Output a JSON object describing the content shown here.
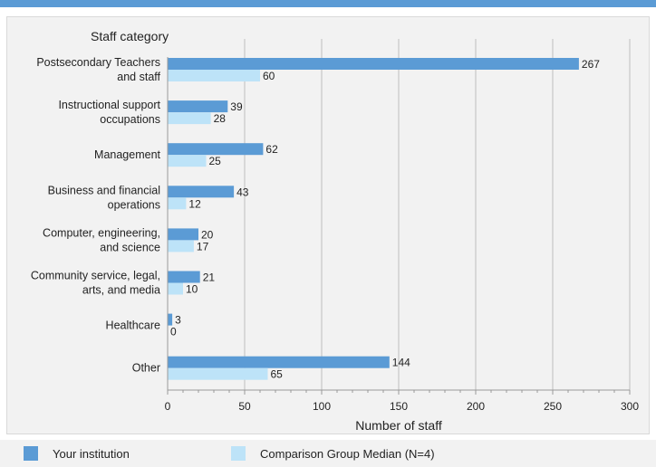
{
  "colors": {
    "series1": "#5b9bd5",
    "series2": "#bde3f8",
    "bar_band": "#5b9bd5"
  },
  "chart_data": {
    "type": "bar",
    "orientation": "horizontal",
    "title": "Staff category",
    "xlabel": "Number of staff",
    "categories": [
      [
        "Postsecondary Teachers",
        "and staff"
      ],
      [
        "Instructional support",
        "occupations"
      ],
      [
        "Management"
      ],
      [
        "Business and financial",
        "operations"
      ],
      [
        "Computer, engineering,",
        "and science"
      ],
      [
        "Community service, legal,",
        "arts, and media"
      ],
      [
        "Healthcare"
      ],
      [
        "Other"
      ]
    ],
    "series": [
      {
        "name": "Your institution",
        "values": [
          267,
          39,
          62,
          43,
          20,
          21,
          3,
          144
        ]
      },
      {
        "name": "Comparison Group Median (N=4)",
        "values": [
          60,
          28,
          25,
          12,
          17,
          10,
          0,
          65
        ]
      }
    ],
    "xlim": [
      0,
      300
    ],
    "xticks": [
      0,
      50,
      100,
      150,
      200,
      250,
      300
    ],
    "grid": true,
    "legend_position": "bottom"
  }
}
